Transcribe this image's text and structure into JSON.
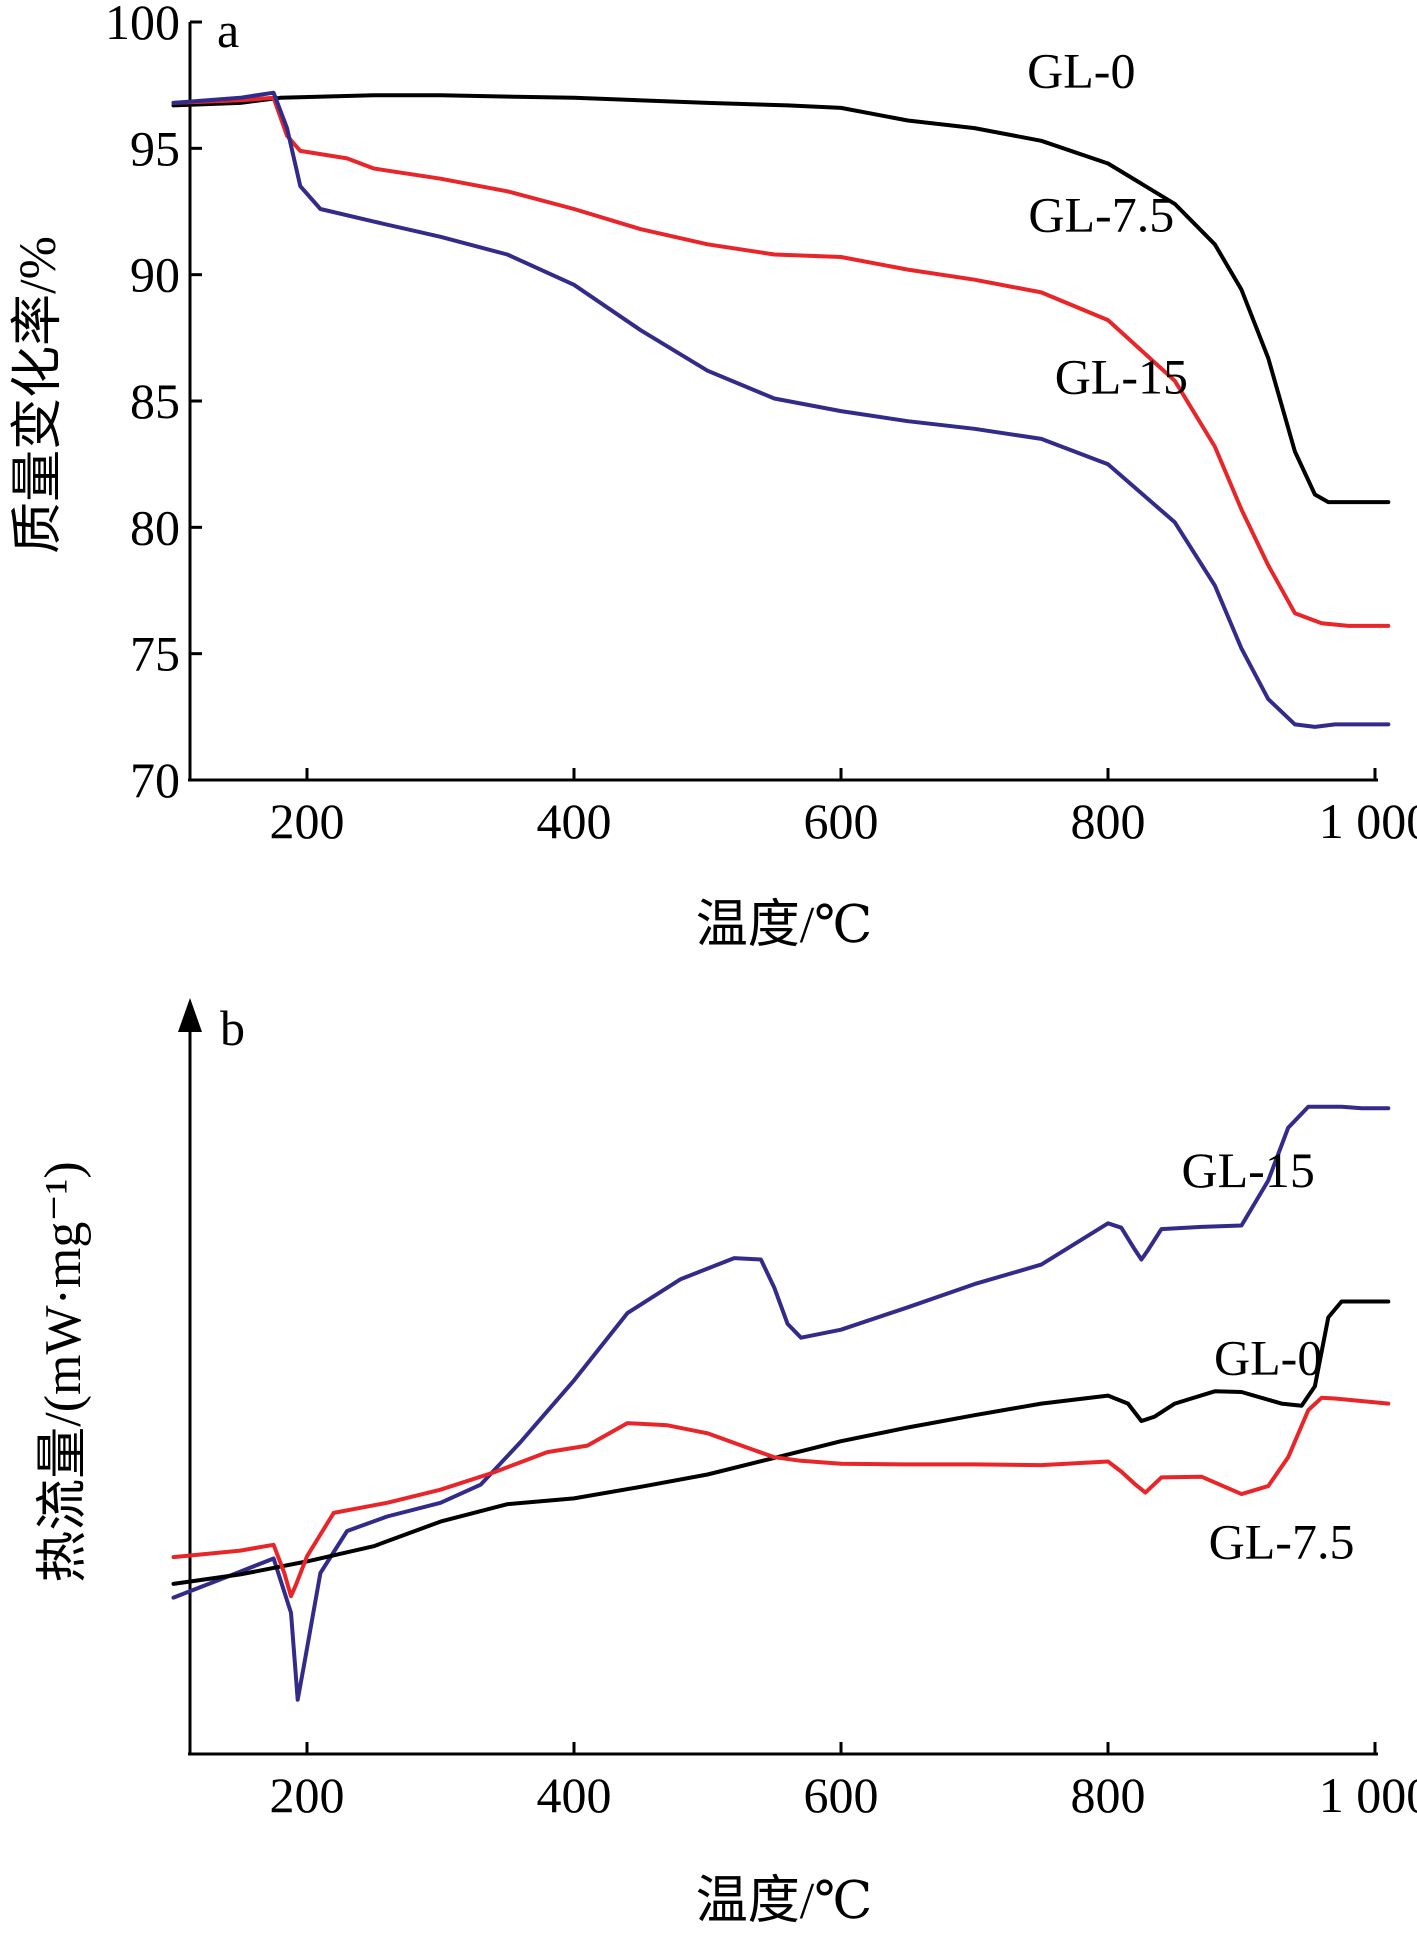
{
  "chart_data": [
    {
      "panel_label": "a",
      "type": "line",
      "xlabel": "温度/℃",
      "ylabel": "质量变化率/%",
      "xlim": [
        100,
        1010
      ],
      "ylim": [
        70,
        100
      ],
      "xticks": [
        200,
        400,
        600,
        800,
        1000
      ],
      "xtick_labels": [
        "200",
        "400",
        "600",
        "800",
        "1 000"
      ],
      "yticks": [
        70,
        75,
        80,
        85,
        90,
        95,
        100
      ],
      "ytick_labels": [
        "70",
        "75",
        "80",
        "85",
        "90",
        "95",
        "100"
      ],
      "grid": false,
      "legend": "inline-labels",
      "series": [
        {
          "name": "GL-0",
          "color": "#000000",
          "label_anchor": [
            780,
            97.4
          ],
          "x": [
            100,
            150,
            180,
            250,
            300,
            400,
            500,
            560,
            600,
            650,
            700,
            750,
            800,
            850,
            880,
            900,
            920,
            940,
            955,
            965,
            980,
            1010
          ],
          "y": [
            96.7,
            96.8,
            97.0,
            97.1,
            97.1,
            97.0,
            96.8,
            96.7,
            96.6,
            96.1,
            95.8,
            95.3,
            94.4,
            92.8,
            91.2,
            89.4,
            86.7,
            83.0,
            81.3,
            81.0,
            81.0,
            81.0
          ]
        },
        {
          "name": "GL-7.5",
          "color": "#e8262a",
          "label_anchor": [
            795,
            91.7
          ],
          "x": [
            100,
            150,
            175,
            185,
            195,
            230,
            250,
            300,
            350,
            400,
            450,
            500,
            550,
            600,
            650,
            700,
            750,
            800,
            850,
            880,
            900,
            920,
            940,
            960,
            980,
            1010
          ],
          "y": [
            96.8,
            96.9,
            97.0,
            95.5,
            94.9,
            94.6,
            94.2,
            93.8,
            93.3,
            92.6,
            91.8,
            91.2,
            90.8,
            90.7,
            90.2,
            89.8,
            89.3,
            88.2,
            85.8,
            83.2,
            80.7,
            78.5,
            76.6,
            76.2,
            76.1,
            76.1
          ]
        },
        {
          "name": "GL-15",
          "color": "#332b8a",
          "label_anchor": [
            810,
            85.3
          ],
          "x": [
            100,
            150,
            175,
            185,
            195,
            210,
            250,
            300,
            350,
            400,
            450,
            500,
            550,
            600,
            650,
            700,
            750,
            800,
            850,
            880,
            900,
            920,
            940,
            955,
            970,
            1010
          ],
          "y": [
            96.8,
            97.0,
            97.2,
            95.8,
            93.5,
            92.6,
            92.1,
            91.5,
            90.8,
            89.6,
            87.8,
            86.2,
            85.1,
            84.6,
            84.2,
            83.9,
            83.5,
            82.5,
            80.2,
            77.7,
            75.2,
            73.2,
            72.2,
            72.1,
            72.2,
            72.2
          ]
        }
      ]
    },
    {
      "panel_label": "b",
      "type": "line",
      "xlabel": "温度/℃",
      "ylabel": "热流量/(mW·mg⁻¹)",
      "xlim": [
        100,
        1010
      ],
      "ylim": [
        0,
        100
      ],
      "xticks": [
        200,
        400,
        600,
        800,
        1000
      ],
      "xtick_labels": [
        "200",
        "400",
        "600",
        "800",
        "1 000"
      ],
      "yticks": [],
      "ytick_labels": [],
      "grid": false,
      "legend": "inline-labels",
      "series": [
        {
          "name": "GL-15",
          "color": "#332b8a",
          "label_anchor": [
            905,
            78.3
          ],
          "x": [
            100,
            150,
            175,
            188,
            193,
            198,
            210,
            230,
            260,
            300,
            330,
            360,
            400,
            440,
            480,
            520,
            540,
            550,
            560,
            570,
            600,
            650,
            700,
            750,
            800,
            810,
            820,
            825,
            830,
            840,
            870,
            900,
            920,
            935,
            950,
            965,
            975,
            990,
            1010
          ],
          "y": [
            21.6,
            25.2,
            27.0,
            19.5,
            7.5,
            12.5,
            25.0,
            30.8,
            32.8,
            34.7,
            37.2,
            43.1,
            51.6,
            60.9,
            65.6,
            68.5,
            68.3,
            64.4,
            59.4,
            57.5,
            58.6,
            61.7,
            64.9,
            67.6,
            73.3,
            72.7,
            69.7,
            68.3,
            69.6,
            72.5,
            72.8,
            73.0,
            79.2,
            86.5,
            89.4,
            89.4,
            89.4,
            89.2,
            89.2
          ]
        },
        {
          "name": "GL-0",
          "color": "#000000",
          "label_anchor": [
            920,
            52.4
          ],
          "x": [
            100,
            150,
            200,
            250,
            300,
            350,
            400,
            450,
            500,
            550,
            600,
            650,
            700,
            750,
            800,
            815,
            825,
            835,
            850,
            880,
            900,
            930,
            945,
            955,
            965,
            975,
            990,
            1010
          ],
          "y": [
            23.5,
            24.8,
            26.6,
            28.7,
            32.1,
            34.5,
            35.3,
            36.9,
            38.6,
            40.9,
            43.2,
            45.1,
            46.8,
            48.4,
            49.5,
            48.4,
            46.0,
            46.6,
            48.4,
            50.1,
            50.0,
            48.4,
            48.1,
            50.8,
            60.3,
            62.5,
            62.5,
            62.5
          ]
        },
        {
          "name": "GL-7.5",
          "color": "#e8262a",
          "label_anchor": [
            930,
            27.0
          ],
          "x": [
            100,
            150,
            175,
            183,
            188,
            192,
            200,
            220,
            260,
            300,
            340,
            380,
            410,
            440,
            470,
            500,
            530,
            550,
            570,
            600,
            650,
            700,
            750,
            800,
            810,
            820,
            828,
            840,
            870,
            900,
            920,
            935,
            950,
            960,
            970,
            1010
          ],
          "y": [
            27.2,
            28.1,
            28.9,
            25.0,
            21.8,
            23.5,
            27.3,
            33.3,
            34.7,
            36.5,
            38.9,
            41.7,
            42.6,
            45.7,
            45.4,
            44.3,
            42.3,
            41.0,
            40.5,
            40.1,
            40.0,
            40.0,
            39.9,
            40.4,
            39.0,
            37.3,
            36.1,
            38.2,
            38.3,
            35.9,
            37.0,
            41.0,
            47.5,
            49.2,
            49.1,
            48.4
          ]
        }
      ]
    }
  ]
}
